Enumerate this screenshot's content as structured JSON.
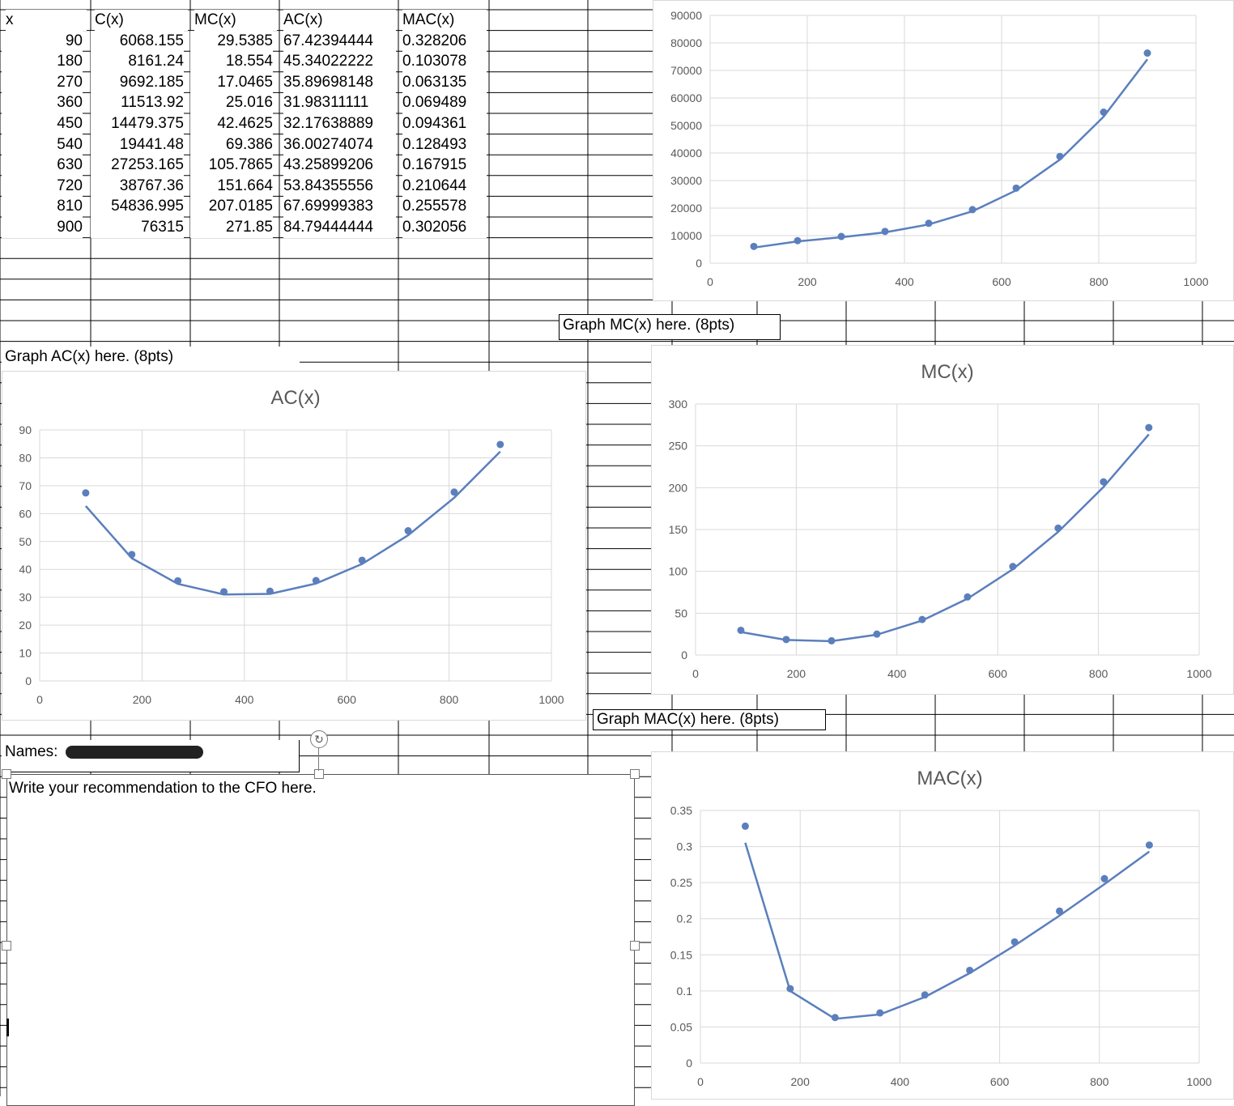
{
  "sheet": {
    "headers": [
      "x",
      "C(x)",
      "MC(x)",
      "AC(x)",
      "MAC(x)"
    ],
    "rows": [
      [
        "90",
        "6068.155",
        "29.5385",
        "67.42394444",
        "0.328206"
      ],
      [
        "180",
        "8161.24",
        "18.554",
        "45.34022222",
        "0.103078"
      ],
      [
        "270",
        "9692.185",
        "17.0465",
        "35.89698148",
        "0.063135"
      ],
      [
        "360",
        "11513.92",
        "25.016",
        "31.98311111",
        "0.069489"
      ],
      [
        "450",
        "14479.375",
        "42.4625",
        "32.17638889",
        "0.094361"
      ],
      [
        "540",
        "19441.48",
        "69.386",
        "36.00274074",
        "0.128493"
      ],
      [
        "630",
        "27253.165",
        "105.7865",
        "43.25899206",
        "0.167915"
      ],
      [
        "720",
        "38767.36",
        "151.664",
        "53.84355556",
        "0.210644"
      ],
      [
        "810",
        "54836.995",
        "207.0185",
        "67.69999383",
        "0.255578"
      ],
      [
        "900",
        "76315",
        "271.85",
        "84.79444444",
        "0.302056"
      ]
    ]
  },
  "labels": {
    "graph_mc": "Graph MC(x) here. (8pts)",
    "graph_ac": "Graph AC(x) here. (8pts)",
    "graph_mac": "Graph MAC(x) here. (8pts)",
    "names_label": "Names:",
    "recommendation": "Write your recommendation to the CFO here."
  },
  "colors": {
    "series": "#5b7fbd",
    "grid": "#d9d9d9",
    "axis_text": "#595959"
  },
  "chart_data": [
    {
      "type": "scatter",
      "id": "cx",
      "title": "",
      "x": [
        90,
        180,
        270,
        360,
        450,
        540,
        630,
        720,
        810,
        900
      ],
      "y": [
        6068.155,
        8161.24,
        9692.185,
        11513.92,
        14479.375,
        19441.48,
        27253.165,
        38767.36,
        54836.995,
        76315
      ],
      "xlim": [
        0,
        1000
      ],
      "ylim": [
        0,
        90000
      ],
      "xticks": [
        "0",
        "200",
        "400",
        "600",
        "800",
        "1000"
      ],
      "yticks": [
        "0",
        "10000",
        "20000",
        "30000",
        "40000",
        "50000",
        "60000",
        "70000",
        "80000",
        "90000"
      ],
      "grid": true,
      "trendline": true
    },
    {
      "type": "scatter",
      "id": "ac",
      "title": "AC(x)",
      "x": [
        90,
        180,
        270,
        360,
        450,
        540,
        630,
        720,
        810,
        900
      ],
      "y": [
        67.42,
        45.34,
        35.9,
        31.98,
        32.18,
        36.0,
        43.26,
        53.84,
        67.7,
        84.79
      ],
      "xlim": [
        0,
        1000
      ],
      "ylim": [
        0,
        90
      ],
      "xticks": [
        "0",
        "200",
        "400",
        "600",
        "800",
        "1000"
      ],
      "yticks": [
        "0",
        "10",
        "20",
        "30",
        "40",
        "50",
        "60",
        "70",
        "80",
        "90"
      ],
      "grid": true,
      "trendline": true
    },
    {
      "type": "scatter",
      "id": "mc",
      "title": "MC(x)",
      "x": [
        90,
        180,
        270,
        360,
        450,
        540,
        630,
        720,
        810,
        900
      ],
      "y": [
        29.54,
        18.55,
        17.05,
        25.02,
        42.46,
        69.39,
        105.79,
        151.66,
        207.02,
        271.85
      ],
      "xlim": [
        0,
        1000
      ],
      "ylim": [
        0,
        300
      ],
      "xticks": [
        "0",
        "200",
        "400",
        "600",
        "800",
        "1000"
      ],
      "yticks": [
        "0",
        "50",
        "100",
        "150",
        "200",
        "250",
        "300"
      ],
      "grid": true,
      "trendline": true
    },
    {
      "type": "scatter",
      "id": "mac",
      "title": "MAC(x)",
      "x": [
        90,
        180,
        270,
        360,
        450,
        540,
        630,
        720,
        810,
        900
      ],
      "y": [
        0.3282,
        0.1031,
        0.0631,
        0.0695,
        0.0944,
        0.1285,
        0.1679,
        0.2106,
        0.2556,
        0.3021
      ],
      "xlim": [
        0,
        1000
      ],
      "ylim": [
        0,
        0.35
      ],
      "xticks": [
        "0",
        "200",
        "400",
        "600",
        "800",
        "1000"
      ],
      "yticks": [
        "0",
        "0.05",
        "0.1",
        "0.15",
        "0.2",
        "0.25",
        "0.3",
        "0.35"
      ],
      "grid": true,
      "trendline": true
    }
  ]
}
